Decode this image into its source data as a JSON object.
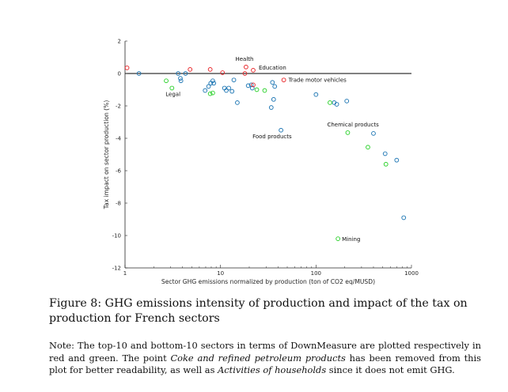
{
  "chart_data": {
    "type": "scatter",
    "xlabel": "Sector GHG emissions normalized by production (ton of CO2 eq/MUSD)",
    "ylabel": "Tax impact on sector production (%)",
    "xscale": "log",
    "xlim": [
      1,
      1000
    ],
    "ylim": [
      -12,
      2
    ],
    "xticks": [
      1,
      10,
      100,
      1000
    ],
    "yticks": [
      2,
      0,
      -2,
      -4,
      -6,
      -8,
      -10,
      -12
    ],
    "grid": false,
    "zero_line": true,
    "colors": {
      "other": "#1f77b4",
      "top10": "#e8272b",
      "bottom10": "#2bd12b"
    },
    "series": [
      {
        "group": "other",
        "points": [
          [
            1.4,
            0.0
          ],
          [
            3.6,
            0.0
          ],
          [
            3.8,
            -0.3
          ],
          [
            3.85,
            -0.45
          ],
          [
            4.3,
            0.0
          ],
          [
            6.9,
            -1.05
          ],
          [
            7.5,
            -0.8
          ],
          [
            7.9,
            -0.6
          ],
          [
            8.3,
            -0.45
          ],
          [
            8.5,
            -0.6
          ],
          [
            11.0,
            -0.9
          ],
          [
            11.5,
            -1.05
          ],
          [
            12.2,
            -0.9
          ],
          [
            13.2,
            -1.1
          ],
          [
            13.8,
            -0.4
          ],
          [
            15.0,
            -1.8
          ],
          [
            19.5,
            -0.75
          ],
          [
            21.0,
            -0.7
          ],
          [
            21.5,
            -0.9
          ],
          [
            35.0,
            -0.55
          ],
          [
            37.0,
            -0.8
          ],
          [
            34.0,
            -2.1
          ],
          [
            36.0,
            -1.6
          ],
          [
            43.0,
            -3.5
          ],
          [
            100.0,
            -1.3
          ],
          [
            155.0,
            -1.8
          ],
          [
            165.0,
            -1.9
          ],
          [
            210.0,
            -1.7
          ],
          [
            400.0,
            -3.7
          ],
          [
            530.0,
            -4.95
          ],
          [
            700.0,
            -5.35
          ],
          [
            830.0,
            -8.9
          ]
        ]
      },
      {
        "group": "top10",
        "points": [
          [
            1.05,
            0.35
          ],
          [
            4.8,
            0.25
          ],
          [
            7.8,
            0.25
          ],
          [
            10.5,
            0.05
          ],
          [
            18.5,
            0.4
          ],
          [
            18.0,
            0.0
          ],
          [
            22.0,
            0.2
          ],
          [
            46.0,
            -0.4
          ],
          [
            22.0,
            -0.7
          ]
        ]
      },
      {
        "group": "bottom10",
        "points": [
          [
            2.7,
            -0.45
          ],
          [
            3.1,
            -0.9
          ],
          [
            7.8,
            -1.25
          ],
          [
            8.3,
            -1.2
          ],
          [
            24.0,
            -1.0
          ],
          [
            29.0,
            -1.05
          ],
          [
            140.0,
            -1.8
          ],
          [
            215.0,
            -3.65
          ],
          [
            350.0,
            -4.55
          ],
          [
            540.0,
            -5.6
          ],
          [
            170.0,
            -10.2
          ]
        ]
      }
    ],
    "annotations": [
      {
        "text": "Health",
        "x": 18.0,
        "y": 0.4
      },
      {
        "text": "Education",
        "x": 22.0,
        "y": 0.2
      },
      {
        "text": "Trade motor vehicles",
        "x": 46.0,
        "y": -0.4
      },
      {
        "text": "Legal",
        "x": 3.1,
        "y": -0.9
      },
      {
        "text": "Chemical products",
        "x": 215.0,
        "y": -3.65
      },
      {
        "text": "Food products",
        "x": 43.0,
        "y": -3.5
      },
      {
        "text": "Mining",
        "x": 170.0,
        "y": -10.2
      }
    ]
  },
  "caption": "Figure 8: GHG emissions intensity of production and impact of the tax on production for French sectors",
  "note": {
    "p1": "Note: The top-10 and bottom-10 sectors in terms of DownMeasure are plotted respectively in red and green. The point ",
    "em1": "Coke and refined petroleum products",
    "p2": " has been removed from this plot for better readability, as well as ",
    "em2": "Activities of households",
    "p3": " since it does not emit GHG."
  }
}
